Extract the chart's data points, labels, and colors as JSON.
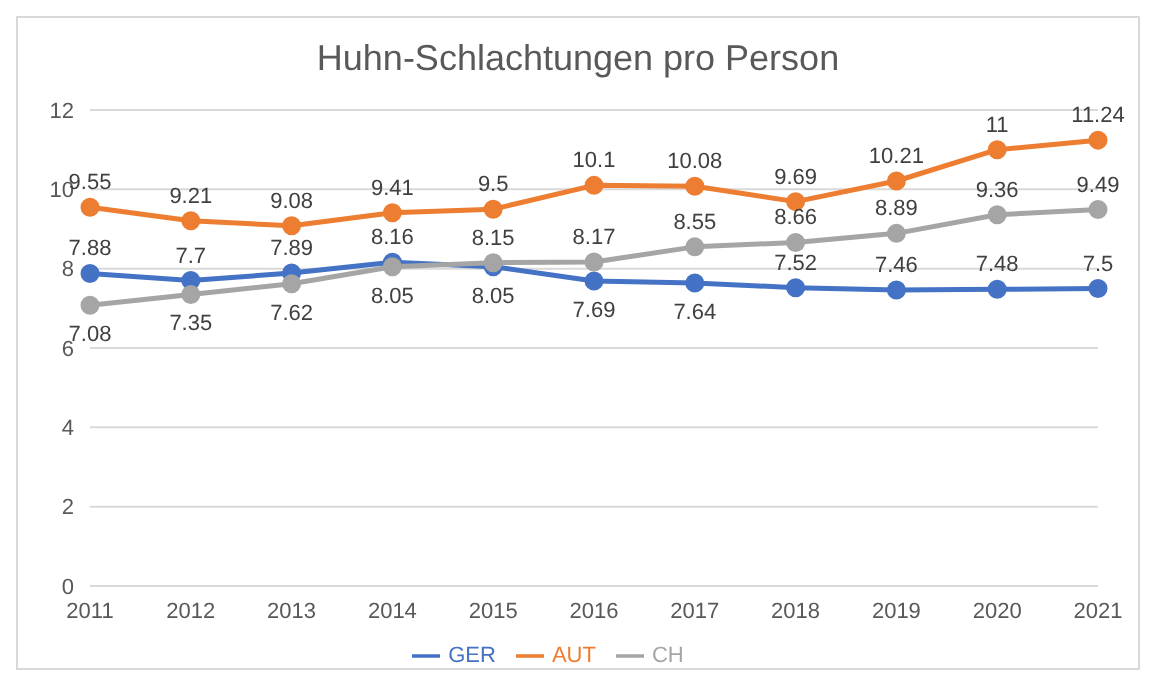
{
  "chart_data": {
    "type": "line",
    "title": "Huhn-Schlachtungen pro Person",
    "categories": [
      "2011",
      "2012",
      "2013",
      "2014",
      "2015",
      "2016",
      "2017",
      "2018",
      "2019",
      "2020",
      "2021"
    ],
    "series": [
      {
        "name": "GER",
        "color": "#4472c4",
        "values": [
          7.88,
          7.7,
          7.89,
          8.16,
          8.05,
          7.69,
          7.64,
          7.52,
          7.46,
          7.48,
          7.5
        ]
      },
      {
        "name": "AUT",
        "color": "#ed7d31",
        "values": [
          9.55,
          9.21,
          9.08,
          9.41,
          9.5,
          10.1,
          10.08,
          9.69,
          10.21,
          11,
          11.24
        ]
      },
      {
        "name": "CH",
        "color": "#a5a5a5",
        "values": [
          7.08,
          7.35,
          7.62,
          8.05,
          8.15,
          8.17,
          8.55,
          8.66,
          8.89,
          9.36,
          9.49
        ]
      }
    ],
    "ylim": [
      0,
      12
    ],
    "yticks": [
      0,
      2,
      4,
      6,
      8,
      10,
      12
    ],
    "grid": "y",
    "legend": "bottom",
    "marker": "circle",
    "line_style": "solid",
    "data_labels": true
  }
}
